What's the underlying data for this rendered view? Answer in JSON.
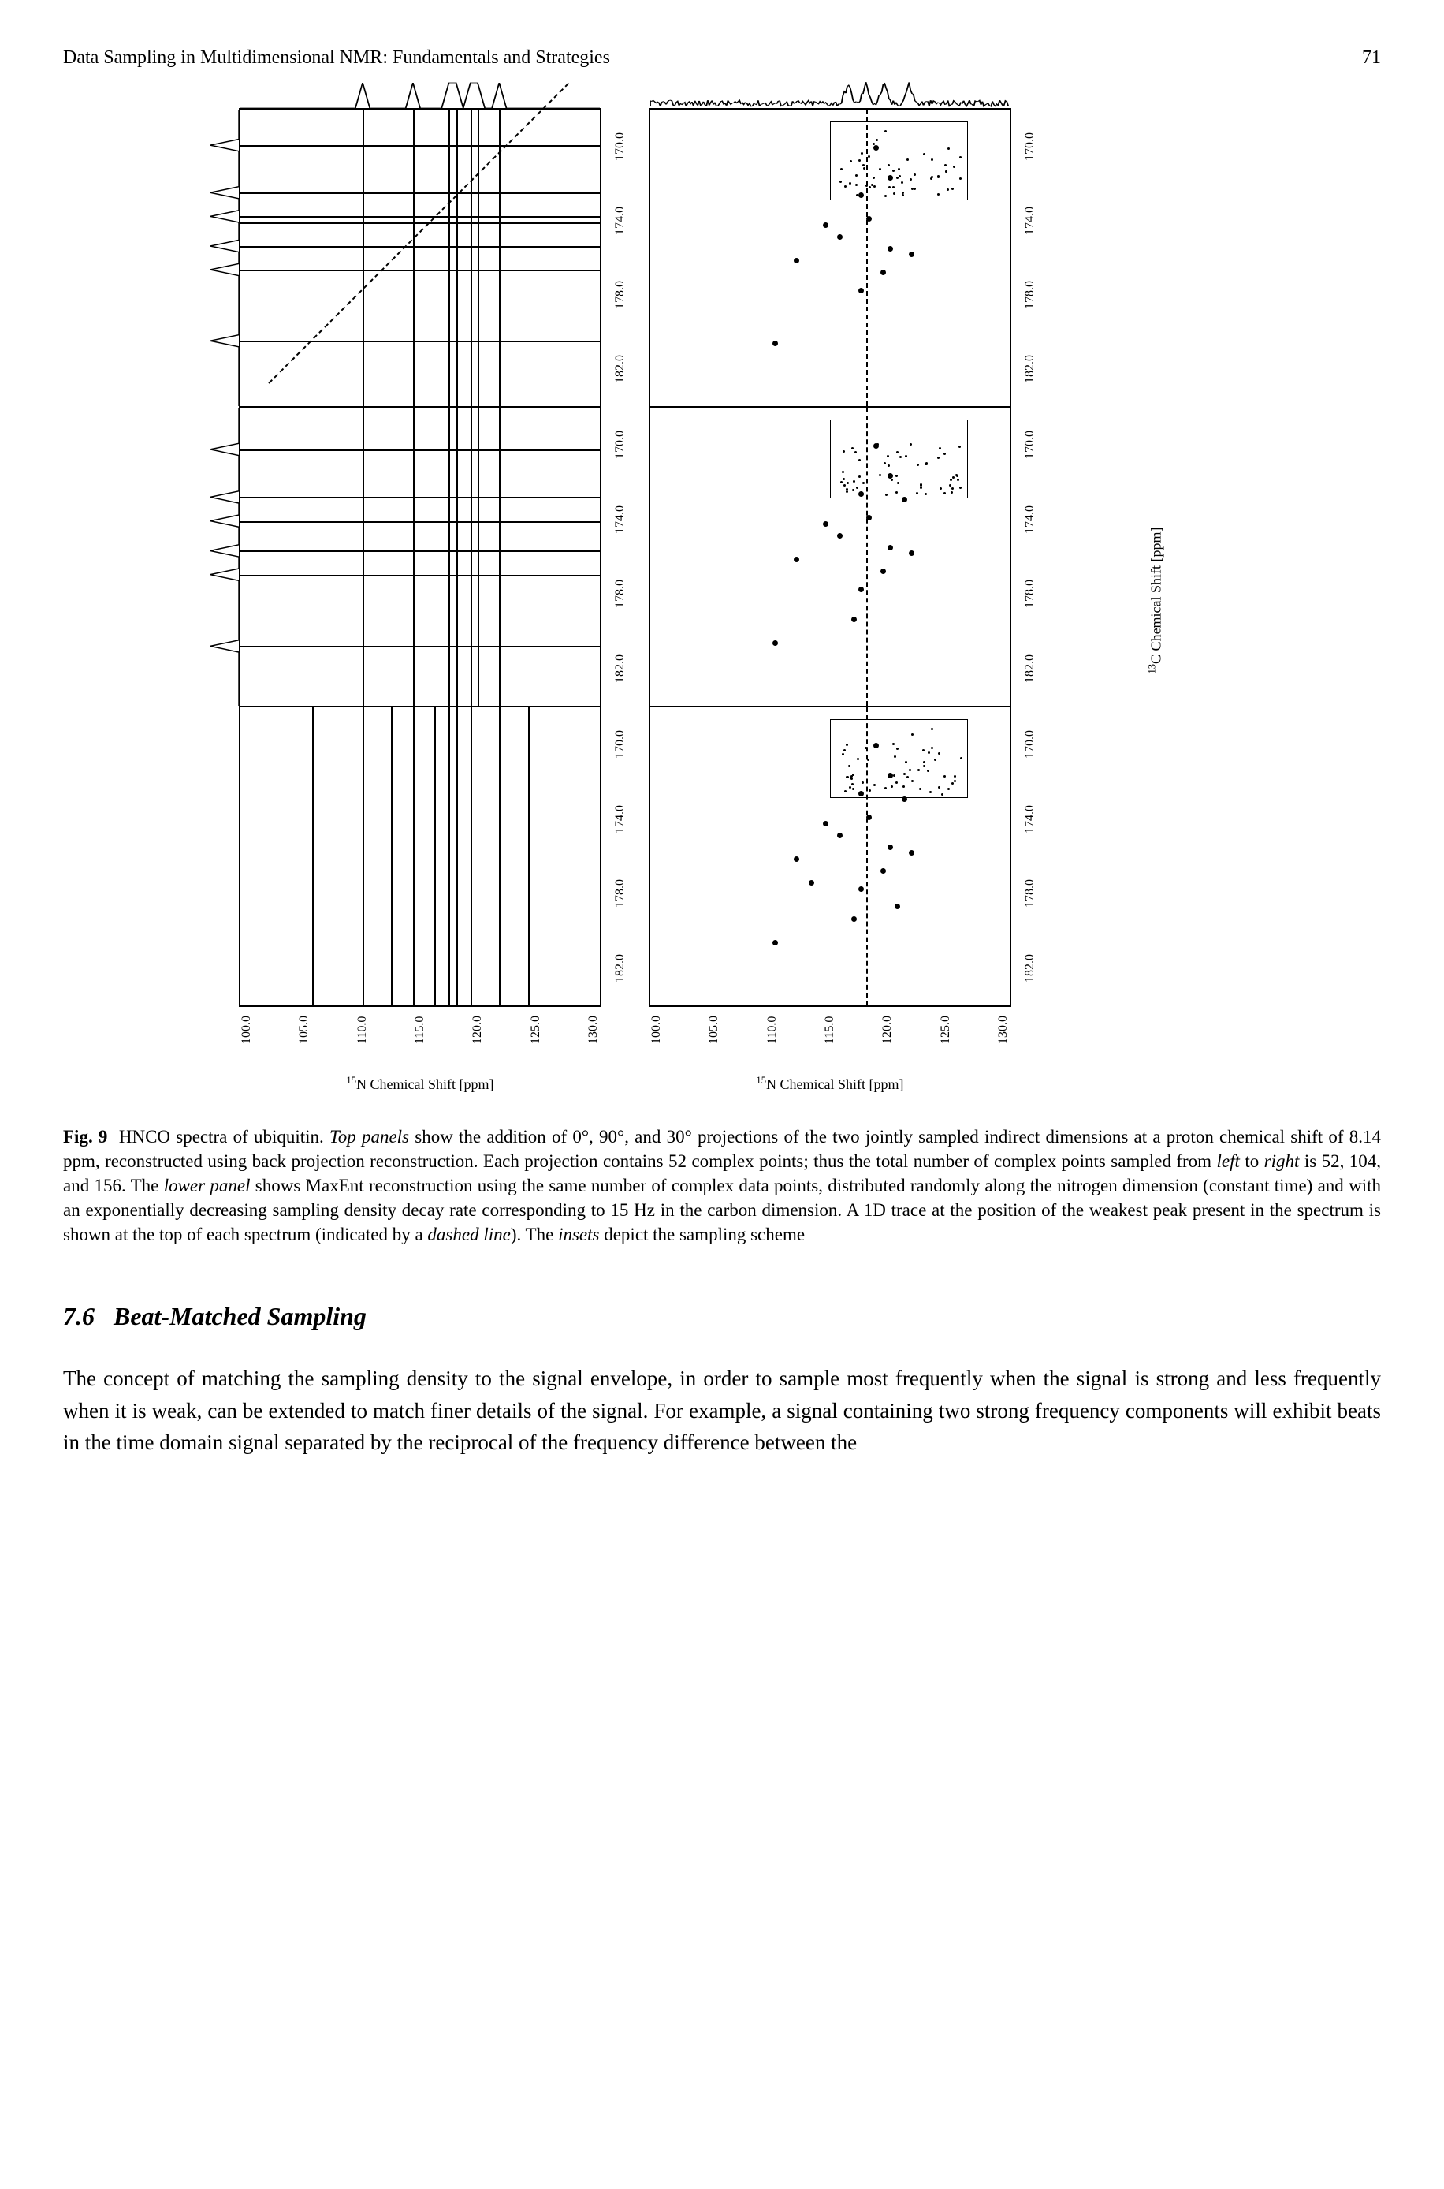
{
  "header": {
    "title": "Data Sampling in Multidimensional NMR: Fundamentals and Strategies",
    "page": "71"
  },
  "figure": {
    "xlabel_html": "<sup>15</sup>N Chemical Shift [ppm]",
    "ylabel_html": "<sup>13</sup>C Chemical Shift [ppm]",
    "xticks": [
      "100.0",
      "105.0",
      "110.0",
      "115.0",
      "120.0",
      "125.0",
      "130.0"
    ],
    "yticks_full": [
      "170.0",
      "174.0",
      "178.0",
      "182.0"
    ],
    "yticks_top": [
      "170.0",
      "174.0",
      "178.0",
      "182.0"
    ],
    "panel_border_color": "#000000",
    "background_color": "#ffffff",
    "line_color": "#000000",
    "left_panels": [
      {
        "desc": "0deg projection, 52 pts",
        "hlines_pc": [
          12,
          28,
          36,
          38,
          46,
          54,
          78
        ],
        "vlines_pc": [
          34,
          48,
          58,
          60,
          64,
          66,
          72
        ],
        "diag": true,
        "dashed_v_pc": 60,
        "trace_top_peaks": [
          34,
          48,
          58,
          60,
          64,
          66,
          72
        ],
        "trace_left_peaks": [
          12,
          28,
          36,
          46,
          54,
          78
        ]
      },
      {
        "desc": "90deg projection, 104 pts",
        "hlines_pc": [
          14,
          30,
          38,
          48,
          56,
          80
        ],
        "vlines_pc": [
          34,
          48,
          58,
          60,
          64,
          66,
          72
        ],
        "diag": false,
        "dashed_v_pc": 60,
        "trace_top_peaks": [
          34,
          48,
          58,
          60,
          64,
          66,
          72
        ],
        "trace_left_peaks": [
          14,
          30,
          38,
          48,
          56,
          80
        ]
      },
      {
        "desc": "30deg projection, 156 pts",
        "hlines_pc": [],
        "vlines_pc": [
          20,
          34,
          42,
          48,
          54,
          58,
          60,
          64,
          72,
          80
        ],
        "diag": false,
        "dashed_v_pc": null,
        "trace_top_peaks": [],
        "trace_left_peaks": []
      }
    ],
    "right_panels": [
      {
        "desc": "MaxEnt 52",
        "inset": {
          "x_pc": 50,
          "y_pc": 4,
          "w_pc": 38,
          "h_pc": 26,
          "sampling_dots_n": 55
        },
        "dashed_v_pc": 60,
        "cross_peaks": [
          [
            62,
            12
          ],
          [
            58,
            28
          ],
          [
            60,
            36
          ],
          [
            66,
            46
          ],
          [
            48,
            38
          ],
          [
            64,
            54
          ],
          [
            34,
            78
          ],
          [
            72,
            48
          ],
          [
            58,
            60
          ],
          [
            66,
            22
          ],
          [
            52,
            42
          ],
          [
            40,
            50
          ]
        ],
        "trace_1d_right_peaks": [
          10,
          26,
          36,
          46,
          54,
          78
        ]
      },
      {
        "desc": "MaxEnt 104",
        "inset": {
          "x_pc": 50,
          "y_pc": 4,
          "w_pc": 38,
          "h_pc": 26,
          "sampling_dots_n": 55
        },
        "dashed_v_pc": 60,
        "cross_peaks": [
          [
            62,
            12
          ],
          [
            58,
            28
          ],
          [
            60,
            36
          ],
          [
            66,
            46
          ],
          [
            48,
            38
          ],
          [
            64,
            54
          ],
          [
            34,
            78
          ],
          [
            72,
            48
          ],
          [
            58,
            60
          ],
          [
            66,
            22
          ],
          [
            52,
            42
          ],
          [
            40,
            50
          ],
          [
            56,
            70
          ],
          [
            70,
            30
          ]
        ],
        "trace_1d_right_peaks": [
          10,
          26,
          36,
          46,
          54,
          78
        ]
      },
      {
        "desc": "MaxEnt 156",
        "inset": {
          "x_pc": 50,
          "y_pc": 4,
          "w_pc": 38,
          "h_pc": 26,
          "sampling_dots_n": 55
        },
        "dashed_v_pc": 60,
        "cross_peaks": [
          [
            62,
            12
          ],
          [
            58,
            28
          ],
          [
            60,
            36
          ],
          [
            66,
            46
          ],
          [
            48,
            38
          ],
          [
            64,
            54
          ],
          [
            34,
            78
          ],
          [
            72,
            48
          ],
          [
            58,
            60
          ],
          [
            66,
            22
          ],
          [
            52,
            42
          ],
          [
            40,
            50
          ],
          [
            56,
            70
          ],
          [
            70,
            30
          ],
          [
            44,
            58
          ],
          [
            68,
            66
          ]
        ],
        "trace_1d_right_peaks": [
          10,
          26,
          36,
          46,
          54,
          78
        ]
      }
    ]
  },
  "caption": {
    "label": "Fig. 9",
    "html": "HNCO spectra of ubiquitin. <i>Top panels</i> show the addition of 0°, 90°, and 30° projections of the two jointly sampled indirect dimensions at a proton chemical shift of 8.14 ppm, reconstructed using back projection reconstruction. Each projection contains 52 complex points; thus the total number of complex points sampled from <i>left</i> to <i>right</i> is 52, 104, and 156. The <i>lower panel</i> shows MaxEnt reconstruction using the same number of complex data points, distributed randomly along the nitrogen dimension (constant time) and with an exponentially decreasing sampling density decay rate corresponding to 15 Hz in the carbon dimension. A 1D trace at the position of the weakest peak present in the spectrum is shown at the top of each spectrum (indicated by a <i>dashed line</i>). The <i>insets</i> depict the sampling scheme"
  },
  "section": {
    "number": "7.6",
    "title": "Beat-Matched Sampling"
  },
  "body": "The concept of matching the sampling density to the signal envelope, in order to sample most frequently when the signal is strong and less frequently when it is weak, can be extended to match finer details of the signal. For example, a signal containing two strong frequency components will exhibit beats in the time domain signal separated by the reciprocal of the frequency difference between the"
}
